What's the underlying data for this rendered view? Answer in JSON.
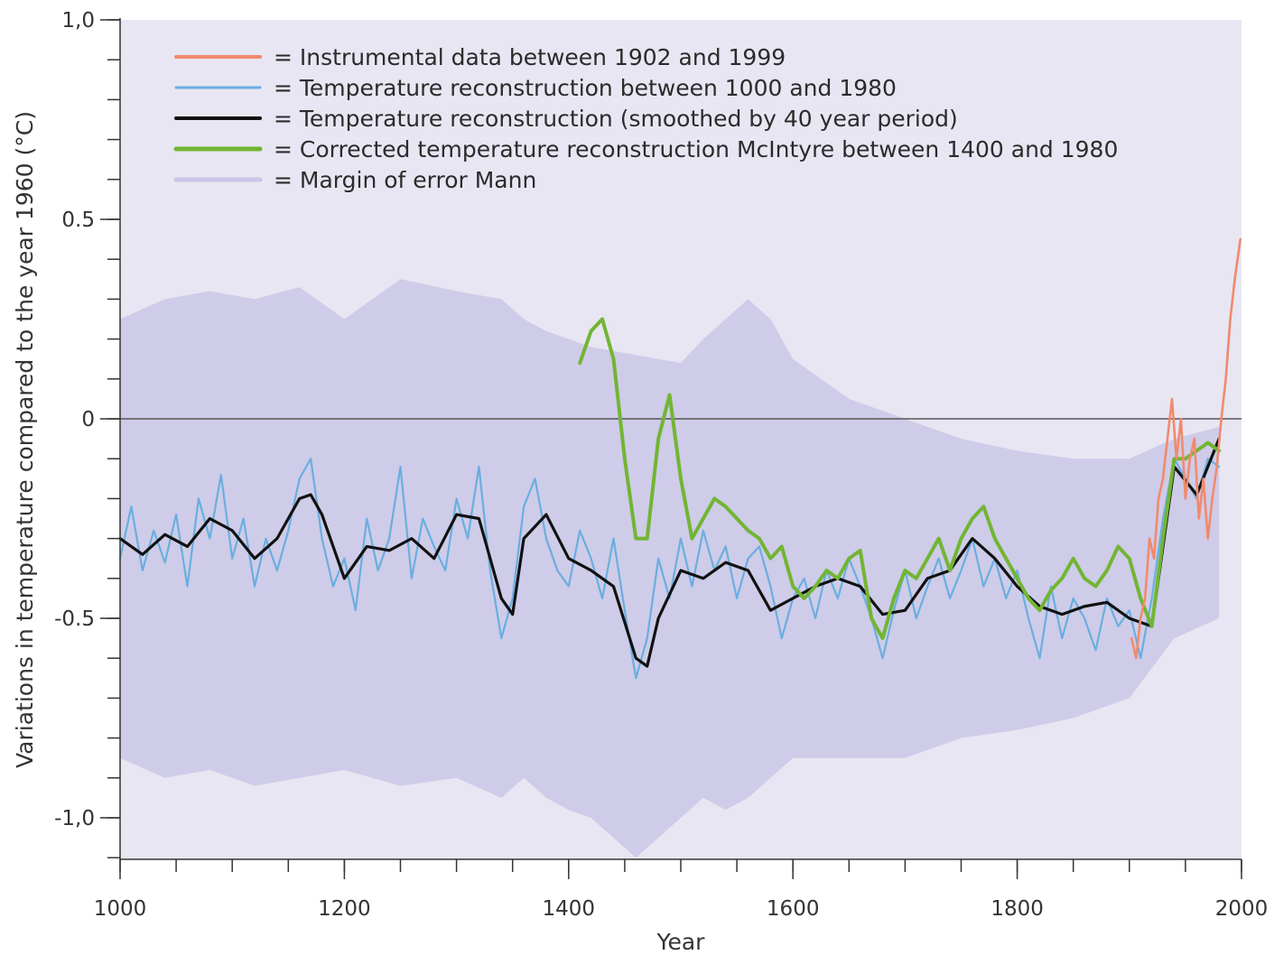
{
  "chart_data": {
    "type": "line",
    "xlabel": "Year",
    "ylabel": "Variations in temperature compared to the year 1960 (°C)",
    "xlim": [
      1000,
      2000
    ],
    "ylim": [
      -1.1,
      1.0
    ],
    "x_ticks": [
      {
        "value": 1000,
        "label": "1000"
      },
      {
        "value": 1200,
        "label": "1200"
      },
      {
        "value": 1400,
        "label": "1400"
      },
      {
        "value": 1600,
        "label": "1600"
      },
      {
        "value": 1800,
        "label": "1800"
      },
      {
        "value": 2000,
        "label": "2000"
      }
    ],
    "x_minor_step": 50,
    "y_ticks": [
      {
        "value": 1.0,
        "label": "1,0"
      },
      {
        "value": 0.5,
        "label": "0.5"
      },
      {
        "value": 0,
        "label": "0"
      },
      {
        "value": -0.5,
        "label": "-0.5"
      },
      {
        "value": -1.0,
        "label": "-1,0"
      }
    ],
    "y_minor_step": 0.1,
    "zero_line": true,
    "grid": false,
    "legend_position": "top-left",
    "colors": {
      "plot_background": "#e8e6f2",
      "instrumental": "#f08a6e",
      "reconstruction": "#6aaee0",
      "smoothed": "#111111",
      "mcintyre": "#72b533",
      "error_band": "#c9c7e6",
      "axis": "#333333"
    },
    "legend": [
      {
        "key": "instrumental",
        "label": "= Instrumental data between 1902 and 1999"
      },
      {
        "key": "reconstruction",
        "label": "= Temperature reconstruction between 1000 and 1980"
      },
      {
        "key": "smoothed",
        "label": "= Temperature reconstruction (smoothed by 40 year period)"
      },
      {
        "key": "mcintyre",
        "label": "= Corrected temperature reconstruction McIntyre between 1400 and 1980"
      },
      {
        "key": "error_band",
        "label": "= Margin of error Mann"
      }
    ],
    "series": [
      {
        "key": "error_band",
        "type": "band",
        "x": [
          1000,
          1040,
          1080,
          1120,
          1160,
          1200,
          1250,
          1300,
          1340,
          1360,
          1380,
          1400,
          1420,
          1440,
          1460,
          1480,
          1500,
          1520,
          1540,
          1560,
          1580,
          1600,
          1650,
          1700,
          1750,
          1800,
          1850,
          1900,
          1940,
          1980
        ],
        "upper": [
          0.25,
          0.3,
          0.32,
          0.3,
          0.33,
          0.25,
          0.35,
          0.32,
          0.3,
          0.25,
          0.22,
          0.2,
          0.18,
          0.17,
          0.16,
          0.15,
          0.14,
          0.2,
          0.25,
          0.3,
          0.25,
          0.15,
          0.05,
          0.0,
          -0.05,
          -0.08,
          -0.1,
          -0.1,
          -0.05,
          -0.02
        ],
        "lower": [
          -0.85,
          -0.9,
          -0.88,
          -0.92,
          -0.9,
          -0.88,
          -0.92,
          -0.9,
          -0.95,
          -0.9,
          -0.95,
          -0.98,
          -1.0,
          -1.05,
          -1.1,
          -1.05,
          -1.0,
          -0.95,
          -0.98,
          -0.95,
          -0.9,
          -0.85,
          -0.85,
          -0.85,
          -0.8,
          -0.78,
          -0.75,
          -0.7,
          -0.55,
          -0.5
        ]
      },
      {
        "key": "reconstruction",
        "type": "line",
        "x": [
          1000,
          1010,
          1020,
          1030,
          1040,
          1050,
          1060,
          1070,
          1080,
          1090,
          1100,
          1110,
          1120,
          1130,
          1140,
          1150,
          1160,
          1170,
          1180,
          1190,
          1200,
          1210,
          1220,
          1230,
          1240,
          1250,
          1260,
          1270,
          1280,
          1290,
          1300,
          1310,
          1320,
          1330,
          1340,
          1350,
          1360,
          1370,
          1380,
          1390,
          1400,
          1410,
          1420,
          1430,
          1440,
          1450,
          1460,
          1470,
          1480,
          1490,
          1500,
          1510,
          1520,
          1530,
          1540,
          1550,
          1560,
          1570,
          1580,
          1590,
          1600,
          1610,
          1620,
          1630,
          1640,
          1650,
          1660,
          1670,
          1680,
          1690,
          1700,
          1710,
          1720,
          1730,
          1740,
          1750,
          1760,
          1770,
          1780,
          1790,
          1800,
          1810,
          1820,
          1830,
          1840,
          1850,
          1860,
          1870,
          1880,
          1890,
          1900,
          1910,
          1920,
          1930,
          1940,
          1950,
          1960,
          1970,
          1980
        ],
        "y": [
          -0.35,
          -0.22,
          -0.38,
          -0.28,
          -0.36,
          -0.24,
          -0.42,
          -0.2,
          -0.3,
          -0.14,
          -0.35,
          -0.25,
          -0.42,
          -0.3,
          -0.38,
          -0.28,
          -0.15,
          -0.1,
          -0.3,
          -0.42,
          -0.35,
          -0.48,
          -0.25,
          -0.38,
          -0.3,
          -0.12,
          -0.4,
          -0.25,
          -0.32,
          -0.38,
          -0.2,
          -0.3,
          -0.12,
          -0.38,
          -0.55,
          -0.45,
          -0.22,
          -0.15,
          -0.3,
          -0.38,
          -0.42,
          -0.28,
          -0.35,
          -0.45,
          -0.3,
          -0.48,
          -0.65,
          -0.55,
          -0.35,
          -0.45,
          -0.3,
          -0.42,
          -0.28,
          -0.38,
          -0.32,
          -0.45,
          -0.35,
          -0.32,
          -0.42,
          -0.55,
          -0.45,
          -0.4,
          -0.5,
          -0.38,
          -0.45,
          -0.35,
          -0.42,
          -0.5,
          -0.6,
          -0.48,
          -0.38,
          -0.5,
          -0.42,
          -0.35,
          -0.45,
          -0.38,
          -0.3,
          -0.42,
          -0.35,
          -0.45,
          -0.38,
          -0.5,
          -0.6,
          -0.42,
          -0.55,
          -0.45,
          -0.5,
          -0.58,
          -0.45,
          -0.52,
          -0.48,
          -0.6,
          -0.45,
          -0.25,
          -0.1,
          -0.15,
          -0.2,
          -0.1,
          -0.12
        ]
      },
      {
        "key": "smoothed",
        "type": "line",
        "x": [
          1000,
          1020,
          1040,
          1060,
          1080,
          1100,
          1120,
          1140,
          1160,
          1170,
          1180,
          1200,
          1220,
          1240,
          1260,
          1280,
          1300,
          1320,
          1340,
          1350,
          1360,
          1380,
          1400,
          1420,
          1440,
          1460,
          1470,
          1480,
          1500,
          1520,
          1540,
          1560,
          1580,
          1600,
          1620,
          1640,
          1660,
          1680,
          1700,
          1720,
          1740,
          1760,
          1780,
          1800,
          1820,
          1840,
          1860,
          1880,
          1900,
          1920,
          1940,
          1960,
          1980
        ],
        "y": [
          -0.3,
          -0.34,
          -0.29,
          -0.32,
          -0.25,
          -0.28,
          -0.35,
          -0.3,
          -0.2,
          -0.19,
          -0.24,
          -0.4,
          -0.32,
          -0.33,
          -0.3,
          -0.35,
          -0.24,
          -0.25,
          -0.45,
          -0.49,
          -0.3,
          -0.24,
          -0.35,
          -0.38,
          -0.42,
          -0.6,
          -0.62,
          -0.5,
          -0.38,
          -0.4,
          -0.36,
          -0.38,
          -0.48,
          -0.45,
          -0.42,
          -0.4,
          -0.42,
          -0.49,
          -0.48,
          -0.4,
          -0.38,
          -0.3,
          -0.35,
          -0.42,
          -0.47,
          -0.49,
          -0.47,
          -0.46,
          -0.5,
          -0.52,
          -0.12,
          -0.19,
          -0.05
        ]
      },
      {
        "key": "mcintyre",
        "type": "line",
        "x": [
          1410,
          1420,
          1430,
          1440,
          1450,
          1460,
          1470,
          1480,
          1490,
          1500,
          1510,
          1520,
          1530,
          1540,
          1550,
          1560,
          1570,
          1580,
          1590,
          1600,
          1610,
          1620,
          1630,
          1640,
          1650,
          1660,
          1670,
          1680,
          1690,
          1700,
          1710,
          1720,
          1730,
          1740,
          1750,
          1760,
          1770,
          1780,
          1790,
          1800,
          1810,
          1820,
          1830,
          1840,
          1850,
          1860,
          1870,
          1880,
          1890,
          1900,
          1910,
          1920,
          1930,
          1940,
          1950,
          1960,
          1970,
          1980
        ],
        "y": [
          0.14,
          0.22,
          0.25,
          0.15,
          -0.1,
          -0.3,
          -0.3,
          -0.05,
          0.06,
          -0.15,
          -0.3,
          -0.25,
          -0.2,
          -0.22,
          -0.25,
          -0.28,
          -0.3,
          -0.35,
          -0.32,
          -0.42,
          -0.45,
          -0.42,
          -0.38,
          -0.4,
          -0.35,
          -0.33,
          -0.5,
          -0.55,
          -0.45,
          -0.38,
          -0.4,
          -0.35,
          -0.3,
          -0.38,
          -0.3,
          -0.25,
          -0.22,
          -0.3,
          -0.35,
          -0.4,
          -0.45,
          -0.48,
          -0.43,
          -0.4,
          -0.35,
          -0.4,
          -0.42,
          -0.38,
          -0.32,
          -0.35,
          -0.45,
          -0.52,
          -0.3,
          -0.1,
          -0.1,
          -0.08,
          -0.06,
          -0.08
        ]
      },
      {
        "key": "instrumental",
        "type": "line",
        "x": [
          1902,
          1906,
          1910,
          1914,
          1918,
          1922,
          1926,
          1930,
          1934,
          1938,
          1942,
          1946,
          1950,
          1954,
          1958,
          1962,
          1966,
          1970,
          1974,
          1978,
          1982,
          1986,
          1990,
          1994,
          1999
        ],
        "y": [
          -0.55,
          -0.6,
          -0.5,
          -0.45,
          -0.3,
          -0.35,
          -0.2,
          -0.15,
          -0.05,
          0.05,
          -0.1,
          0.0,
          -0.2,
          -0.1,
          -0.05,
          -0.25,
          -0.15,
          -0.3,
          -0.2,
          -0.12,
          0.0,
          0.1,
          0.25,
          0.35,
          0.45
        ]
      }
    ]
  }
}
